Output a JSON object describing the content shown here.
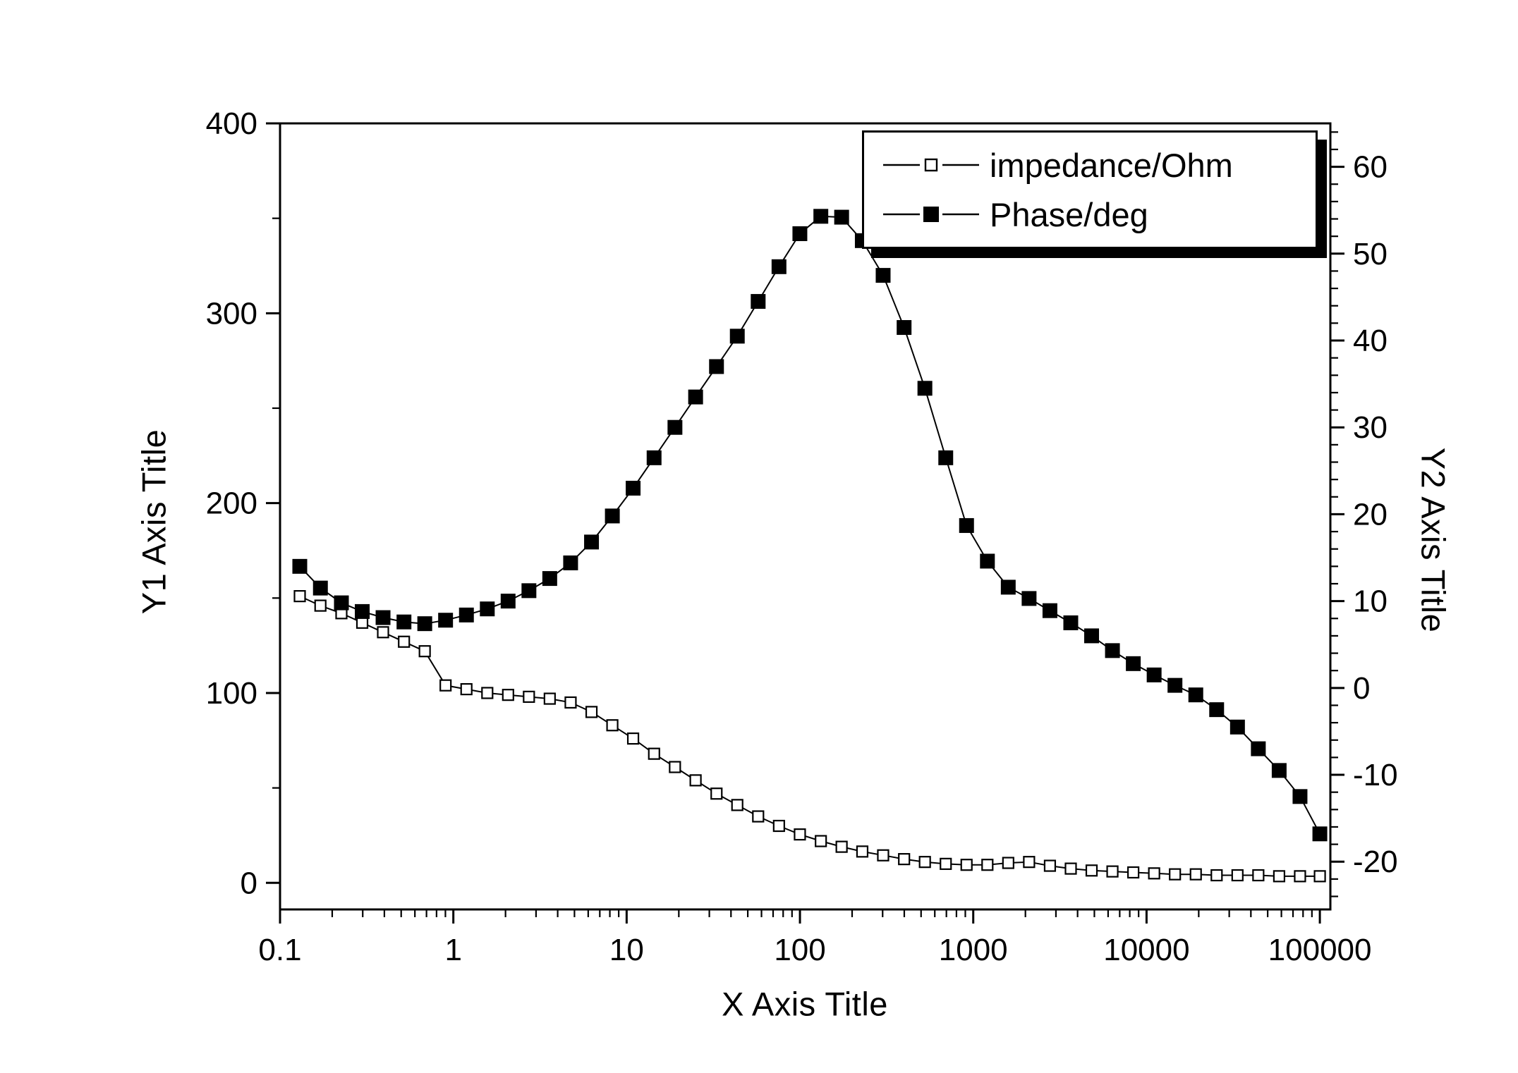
{
  "figure": {
    "background": "#ffffff",
    "foreground": "#000000"
  },
  "chart_data": {
    "type": "line",
    "title": "",
    "xlabel": "X Axis Title",
    "ylabel_left": "Y1 Axis Title",
    "ylabel_right": "Y2 Axis Title",
    "x_scale": "log",
    "x_range": [
      0.1,
      115000
    ],
    "x_major_ticks": [
      0.1,
      1,
      10,
      100,
      1000,
      10000,
      100000
    ],
    "x_tick_labels": [
      "0.1",
      "1",
      "10",
      "100",
      "1000",
      "10000",
      "100000"
    ],
    "y1_range": [
      -14,
      400
    ],
    "y1_ticks": [
      0,
      100,
      200,
      300,
      400
    ],
    "y1_minor_step": 50,
    "y2_range": [
      -25.5,
      65
    ],
    "y2_ticks": [
      -20,
      -10,
      0,
      10,
      20,
      30,
      40,
      50,
      60
    ],
    "y2_minor_step": 2,
    "grid": false,
    "legend": [
      "impedance/Ohm",
      "Phase/deg"
    ],
    "legend_position": "top-right",
    "series": [
      {
        "name": "impedance/Ohm",
        "axis": "y1",
        "marker": "open-square",
        "x": [
          0.13,
          0.171,
          0.226,
          0.298,
          0.393,
          0.519,
          0.684,
          0.902,
          1.19,
          1.57,
          2.07,
          2.73,
          3.6,
          4.75,
          6.27,
          8.27,
          10.9,
          14.4,
          19,
          25,
          33,
          43.5,
          57.4,
          75.7,
          99.9,
          132,
          174,
          229,
          302,
          399,
          526,
          694,
          915,
          1207,
          1592,
          2100,
          2770,
          3654,
          4819,
          6357,
          8385,
          11060,
          14588,
          19242,
          25381,
          33478,
          44158,
          58244,
          76822,
          100000
        ],
        "y": [
          151,
          146,
          142,
          137,
          132,
          127,
          122,
          104,
          102,
          100,
          99,
          98,
          97,
          95,
          90,
          83,
          76,
          68,
          61,
          54,
          47,
          41,
          35,
          30,
          25.5,
          22,
          19,
          16.5,
          14.5,
          12.5,
          11,
          10,
          9.5,
          9.5,
          10.5,
          11,
          9,
          7.5,
          6.5,
          6,
          5.5,
          5,
          4.5,
          4.5,
          4,
          4,
          4,
          3.5,
          3.5,
          3.5
        ]
      },
      {
        "name": "Phase/deg",
        "axis": "y2",
        "marker": "filled-square",
        "x": [
          0.13,
          0.171,
          0.226,
          0.298,
          0.393,
          0.519,
          0.684,
          0.902,
          1.19,
          1.57,
          2.07,
          2.73,
          3.6,
          4.75,
          6.27,
          8.27,
          10.9,
          14.4,
          19,
          25,
          33,
          43.5,
          57.4,
          75.7,
          99.9,
          132,
          174,
          229,
          302,
          399,
          526,
          694,
          915,
          1207,
          1592,
          2100,
          2770,
          3654,
          4819,
          6357,
          8385,
          11060,
          14588,
          19242,
          25381,
          33478,
          44158,
          58244,
          76822,
          100000
        ],
        "y": [
          14,
          11.5,
          9.8,
          8.8,
          8.1,
          7.6,
          7.4,
          7.8,
          8.4,
          9.1,
          10,
          11.2,
          12.6,
          14.4,
          16.8,
          19.8,
          23,
          26.5,
          30,
          33.5,
          37,
          40.5,
          44.5,
          48.5,
          52.3,
          54.3,
          54.2,
          51.5,
          47.5,
          41.5,
          34.5,
          26.5,
          18.7,
          14.6,
          11.6,
          10.3,
          8.9,
          7.5,
          6,
          4.3,
          2.8,
          1.5,
          0.3,
          -0.8,
          -2.5,
          -4.5,
          -7,
          -9.5,
          -12.5,
          -16.8
        ]
      }
    ]
  }
}
